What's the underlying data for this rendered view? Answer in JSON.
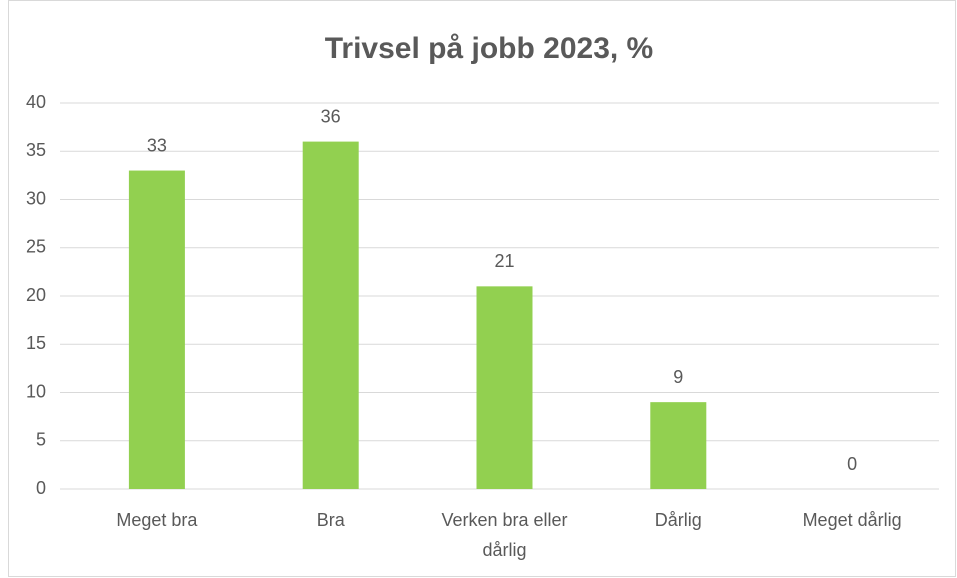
{
  "chart_data": {
    "type": "bar",
    "title": "Trivsel på jobb 2023, %",
    "categories": [
      "Meget bra",
      "Bra",
      "Verken bra eller dårlig",
      "Dårlig",
      "Meget dårlig"
    ],
    "values": [
      33,
      36,
      21,
      9,
      0
    ],
    "color": "#92d050",
    "ylim": [
      0,
      40
    ],
    "yticks": [
      0,
      5,
      10,
      15,
      20,
      25,
      30,
      35,
      40
    ],
    "grid": true
  }
}
